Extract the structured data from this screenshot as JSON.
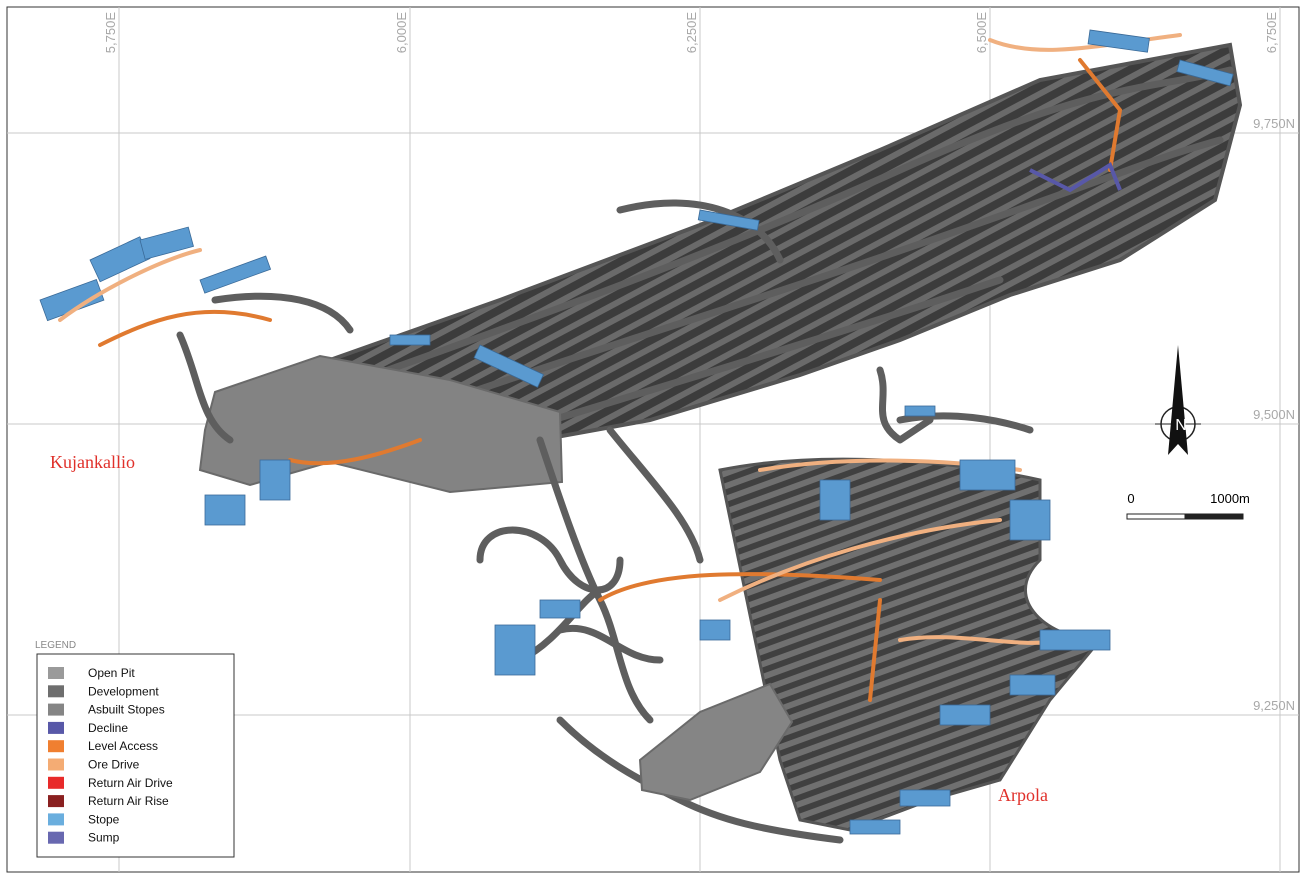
{
  "grid": {
    "eastings": [
      "5,750E",
      "6,000E",
      "6,250E",
      "6,500E",
      "6,750E"
    ],
    "northings": [
      "9,750N",
      "9,500N",
      "9,250N"
    ]
  },
  "places": [
    "Kujankallio",
    "Arpola"
  ],
  "north_arrow": "N",
  "scale_bar": {
    "start": "0",
    "end": "1000m"
  },
  "legend": {
    "title": "LEGEND",
    "items": [
      {
        "label": "Open Pit",
        "color": "#9a9a9a"
      },
      {
        "label": "Development",
        "color": "#6e6e6e"
      },
      {
        "label": "Asbuilt Stopes",
        "color": "#858585"
      },
      {
        "label": "Decline",
        "color": "#5858a8"
      },
      {
        "label": "Level Access",
        "color": "#f07f30"
      },
      {
        "label": "Ore Drive",
        "color": "#f4ac74"
      },
      {
        "label": "Return Air Drive",
        "color": "#e82a2a"
      },
      {
        "label": "Return Air Rise",
        "color": "#8a2020"
      },
      {
        "label": "Stope",
        "color": "#6aaede"
      },
      {
        "label": "Sump",
        "color": "#6868b0"
      }
    ]
  }
}
